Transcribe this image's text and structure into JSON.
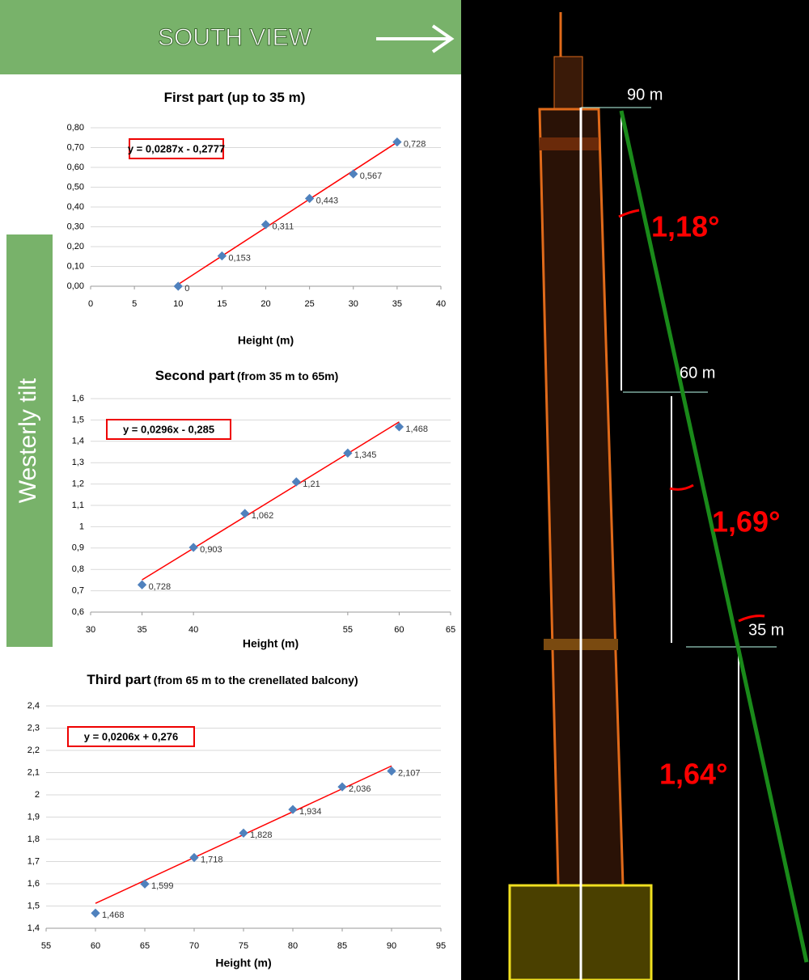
{
  "header": {
    "title": "SOUTH VIEW"
  },
  "side_label": "Westerly tilt",
  "tower": {
    "height_labels": [
      "90 m",
      "60 m",
      "35 m"
    ],
    "angle_labels": [
      "1,18°",
      "1,69°",
      "1,64°"
    ]
  },
  "chart_data": [
    {
      "type": "scatter",
      "title": "First part (up to 35 m)",
      "x_label": "Height (m)",
      "x": [
        10,
        15,
        20,
        25,
        30,
        35
      ],
      "values": [
        0,
        0.153,
        0.311,
        0.443,
        0.567,
        0.728
      ],
      "value_labels": [
        "0",
        "0,153",
        "0,311",
        "0,443",
        "0,567",
        "0,728"
      ],
      "color": "#4f81bd",
      "trendline": {
        "label": "y = 0,0287x - 0,2777",
        "slope": 0.0287,
        "intercept": -0.2777,
        "color": "#ff0000"
      },
      "xlim": [
        0,
        40
      ],
      "xticks": [
        0,
        5,
        10,
        15,
        20,
        25,
        30,
        35,
        40
      ],
      "ylim": [
        0,
        0.8
      ],
      "yticks": [
        {
          "value": 0,
          "label": "0,00"
        },
        {
          "value": 0.1,
          "label": "0,10"
        },
        {
          "value": 0.2,
          "label": "0,20"
        },
        {
          "value": 0.3,
          "label": "0,30"
        },
        {
          "value": 0.4,
          "label": "0,40"
        },
        {
          "value": 0.5,
          "label": "0,50"
        },
        {
          "value": 0.6,
          "label": "0,60"
        },
        {
          "value": 0.7,
          "label": "0,70"
        },
        {
          "value": 0.8,
          "label": "0,80"
        }
      ],
      "grid": true
    },
    {
      "type": "scatter",
      "title": "Second part",
      "subtitle": "(from 35 m to 65m)",
      "x_label": "Height (m)",
      "x": [
        35,
        40,
        45,
        50,
        55,
        60
      ],
      "values": [
        0.728,
        0.903,
        1.062,
        1.21,
        1.345,
        1.468
      ],
      "value_labels": [
        "0,728",
        "0,903",
        "1,062",
        "1,21",
        "1,345",
        "1,468"
      ],
      "color": "#4f81bd",
      "trendline": {
        "label": "y = 0,0296x - 0,285",
        "slope": 0.0296,
        "intercept": -0.285,
        "color": "#ff0000"
      },
      "xlim": [
        30,
        65
      ],
      "xticks": [
        30,
        35,
        40,
        55,
        60,
        65
      ],
      "ylim": [
        0.6,
        1.6
      ],
      "yticks": [
        {
          "value": 0.6,
          "label": "0,6"
        },
        {
          "value": 0.7,
          "label": "0,7"
        },
        {
          "value": 0.8,
          "label": "0,8"
        },
        {
          "value": 0.9,
          "label": "0,9"
        },
        1,
        {
          "value": 1.1,
          "label": "1,1"
        },
        {
          "value": 1.2,
          "label": "1,2"
        },
        {
          "value": 1.3,
          "label": "1,3"
        },
        {
          "value": 1.4,
          "label": "1,4"
        },
        {
          "value": 1.5,
          "label": "1,5"
        },
        {
          "value": 1.6,
          "label": "1,6"
        }
      ],
      "grid": true
    },
    {
      "type": "scatter",
      "title": "Third part",
      "subtitle": "(from 65 m to the crenellated balcony)",
      "x_label": "Height (m)",
      "x": [
        60,
        65,
        70,
        75,
        80,
        85,
        90
      ],
      "values": [
        1.468,
        1.599,
        1.718,
        1.828,
        1.934,
        2.036,
        2.107
      ],
      "value_labels": [
        "1,468",
        "1,599",
        "1,718",
        "1,828",
        "1,934",
        "2,036",
        "2,107"
      ],
      "color": "#4f81bd",
      "trendline": {
        "label": "y = 0,0206x + 0,276",
        "slope": 0.0206,
        "intercept": 0.276,
        "color": "#ff0000"
      },
      "xlim": [
        55,
        95
      ],
      "xticks": [
        55,
        60,
        65,
        70,
        75,
        80,
        85,
        90,
        95
      ],
      "ylim": [
        1.4,
        2.4
      ],
      "yticks": [
        {
          "value": 1.4,
          "label": "1,4"
        },
        {
          "value": 1.5,
          "label": "1,5"
        },
        {
          "value": 1.6,
          "label": "1,6"
        },
        {
          "value": 1.7,
          "label": "1,7"
        },
        {
          "value": 1.8,
          "label": "1,8"
        },
        {
          "value": 1.9,
          "label": "1,9"
        },
        2,
        {
          "value": 2.1,
          "label": "2,1"
        },
        {
          "value": 2.2,
          "label": "2,2"
        },
        {
          "value": 2.3,
          "label": "2,3"
        },
        {
          "value": 2.4,
          "label": "2,4"
        }
      ],
      "grid": true
    }
  ]
}
